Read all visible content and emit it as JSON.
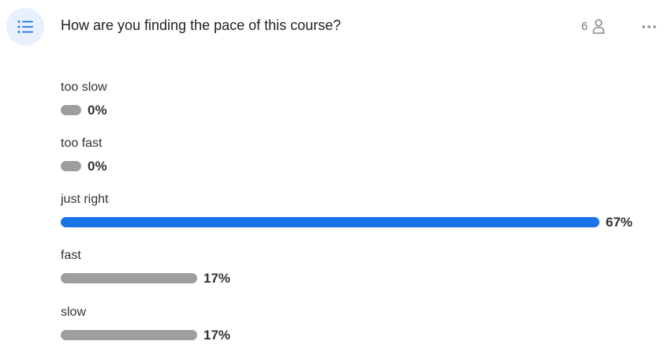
{
  "poll": {
    "question": "How are you finding the pace of this course?",
    "respondent_count": "6",
    "icons": {
      "poll": "list-icon",
      "respondents": "person-icon",
      "more": "more-horizontal-icon"
    }
  },
  "colors": {
    "accent": "#1a73e8",
    "bar_default": "#9e9e9e",
    "icon_bg": "#e8f0fe"
  },
  "options": [
    {
      "label": "too slow",
      "percent_text": "0%",
      "percent": 0,
      "winner": false
    },
    {
      "label": "too fast",
      "percent_text": "0%",
      "percent": 0,
      "winner": false
    },
    {
      "label": "just right",
      "percent_text": "67%",
      "percent": 67,
      "winner": true
    },
    {
      "label": "fast",
      "percent_text": "17%",
      "percent": 17,
      "winner": false
    },
    {
      "label": "slow",
      "percent_text": "17%",
      "percent": 17,
      "winner": false
    }
  ]
}
